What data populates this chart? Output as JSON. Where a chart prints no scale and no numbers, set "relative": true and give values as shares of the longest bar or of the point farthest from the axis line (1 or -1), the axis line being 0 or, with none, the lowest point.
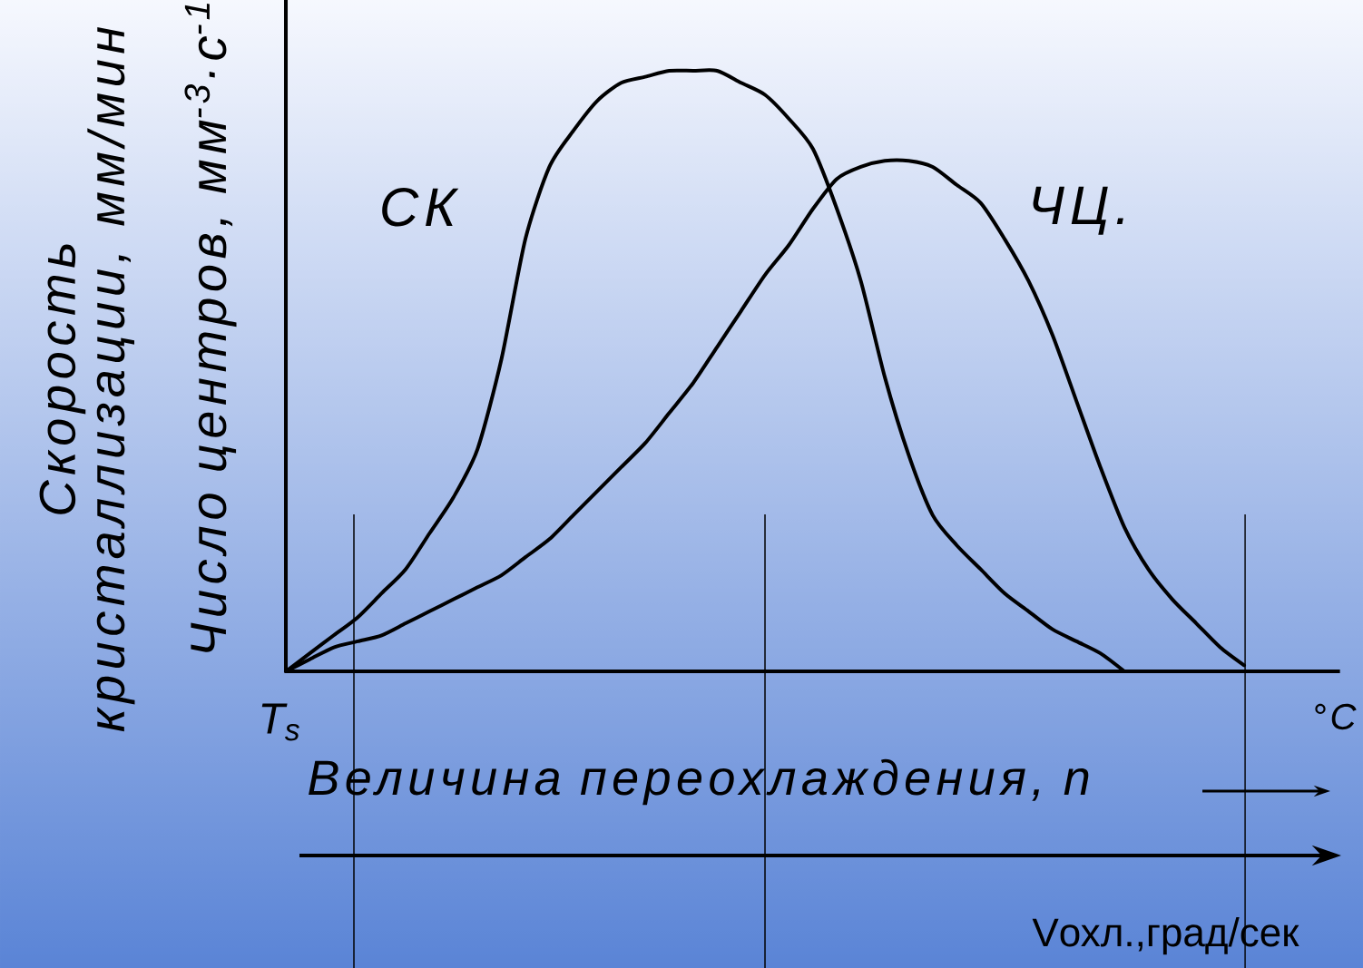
{
  "chart_data": {
    "type": "line",
    "relative": true,
    "line_style": "solid",
    "grid": "x",
    "xlabel": "Величина переохлаждения, n",
    "ylabel": "Скорость кристаллизации, мм/мин",
    "annotations": [
      "Число центров, мм$^{-3}$·с$^{-1}$",
      "T$_{s}$",
      "°C",
      "Vохл.,град/сек"
    ],
    "categories": [
      null,
      null,
      null,
      null,
      null,
      null,
      null,
      null,
      null,
      null,
      null,
      null,
      null,
      null,
      null,
      null,
      null,
      null,
      null,
      null,
      null,
      null,
      null,
      null,
      null,
      null,
      null,
      null,
      null,
      null,
      null,
      null,
      null,
      null,
      null,
      null,
      null,
      null,
      null,
      null,
      null,
      null,
      null,
      null
    ],
    "series": [
      {
        "name": "СК",
        "color": "#000000",
        "values": [
          0,
          0.03,
          0.06,
          0.09,
          0.13,
          0.17,
          0.23,
          0.29,
          0.37,
          0.52,
          0.72,
          0.84,
          0.9,
          0.95,
          0.98,
          0.99,
          1,
          1,
          1,
          0.98,
          0.96,
          0.92,
          0.87,
          0.77,
          0.65,
          0.49,
          0.36,
          0.26,
          0.21,
          0.17,
          0.13,
          0.1,
          0.07,
          0.05,
          0.03,
          0,
          null,
          null,
          null,
          null,
          null,
          null,
          null,
          null
        ]
      },
      {
        "name": "ЧЦ.",
        "color": "#000000",
        "values": [
          0,
          0.02,
          0.04,
          0.05,
          0.06,
          0.08,
          0.1,
          0.12,
          0.14,
          0.16,
          0.19,
          0.22,
          0.26,
          0.3,
          0.34,
          0.38,
          0.43,
          0.48,
          0.54,
          0.6,
          0.66,
          0.71,
          0.77,
          0.82,
          0.84,
          0.85,
          0.85,
          0.84,
          0.81,
          0.78,
          0.72,
          0.65,
          0.56,
          0.45,
          0.34,
          0.24,
          0.17,
          0.12,
          0.08,
          0.04,
          0.01,
          null,
          null,
          null
        ]
      }
    ]
  }
}
